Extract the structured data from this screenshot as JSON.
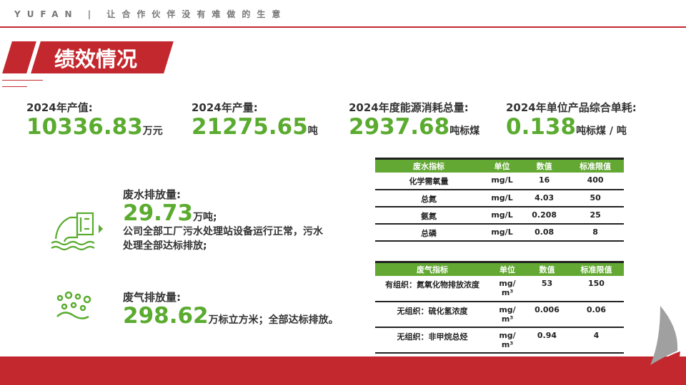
{
  "header": {
    "brand": "YUFAN | 让合作伙伴没有难做的生意"
  },
  "title": "绩效情况",
  "kpis": [
    {
      "label": "2024年产值:",
      "value": "10336.83",
      "unit": "万元"
    },
    {
      "label": "2024年产量:",
      "value": "21275.65",
      "unit": "吨"
    },
    {
      "label": "2024年度能源消耗总量:",
      "value": "2937.68",
      "unit": "吨标煤"
    },
    {
      "label": "2024年单位产品综合单耗:",
      "value": "0.138",
      "unit": "吨标煤 / 吨"
    }
  ],
  "wastewater": {
    "label": "废水排放量:",
    "value": "29.73",
    "unit": "万吨;",
    "desc1": "公司全部工厂污水处理站设备运行正常，污水",
    "desc2": "处理全部达标排放;"
  },
  "wastegas": {
    "label": "废气排放量:",
    "value": "298.62",
    "unit": "万标立方米；全部达标排放。"
  },
  "table_water": {
    "headers": [
      "废水指标",
      "单位",
      "数值",
      "标准限值"
    ],
    "rows": [
      [
        "化学需氧量",
        "mg/L",
        "16",
        "400"
      ],
      [
        "总氮",
        "mg/L",
        "4.03",
        "50"
      ],
      [
        "氨氮",
        "mg/L",
        "0.208",
        "25"
      ],
      [
        "总磷",
        "mg/L",
        "0.08",
        "8"
      ]
    ]
  },
  "table_gas": {
    "headers": [
      "废气指标",
      "单位",
      "数值",
      "标准限值"
    ],
    "rows": [
      [
        "有组织：氮氧化物排放浓度",
        "mg/m³",
        "53",
        "150"
      ],
      [
        "无组织：硫化氢浓度",
        "mg/m³",
        "0.006",
        "0.06"
      ],
      [
        "无组织：非甲烷总烃",
        "mg/m³",
        "0.94",
        "4"
      ]
    ]
  },
  "colors": {
    "accent": "#c3282e",
    "green": "#5aab2f"
  }
}
